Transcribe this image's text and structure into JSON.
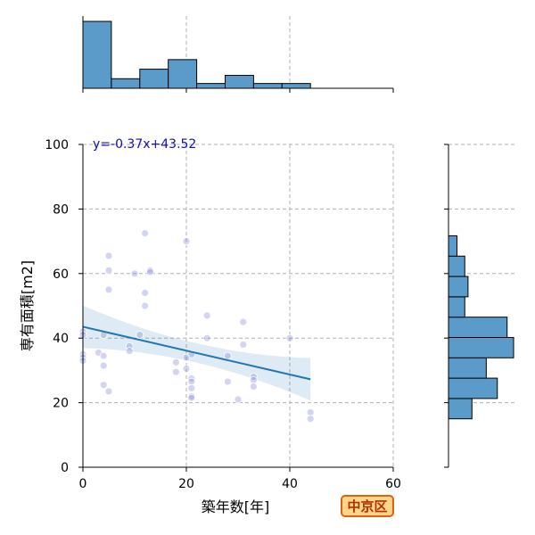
{
  "chart_data": {
    "type": "scatter",
    "title": "",
    "xlabel": "築年数[年]",
    "ylabel": "専有面積[m2]",
    "xlim": [
      0,
      60
    ],
    "ylim": [
      0,
      100
    ],
    "x_ticks": [
      "0",
      "20",
      "40",
      "60"
    ],
    "y_ticks": [
      "0",
      "20",
      "40",
      "60",
      "80",
      "100"
    ],
    "grid": true,
    "regression": {
      "equation": "y=-0.37x+43.52",
      "slope": -0.37,
      "intercept": 43.52,
      "x_range": [
        0,
        44
      ]
    },
    "points": [
      {
        "x": 0,
        "y": 42
      },
      {
        "x": 0,
        "y": 41
      },
      {
        "x": 0,
        "y": 35
      },
      {
        "x": 0,
        "y": 34
      },
      {
        "x": 0,
        "y": 33
      },
      {
        "x": 3,
        "y": 35.5
      },
      {
        "x": 4,
        "y": 41
      },
      {
        "x": 4,
        "y": 34.5
      },
      {
        "x": 4,
        "y": 31.5
      },
      {
        "x": 4,
        "y": 25.5
      },
      {
        "x": 5,
        "y": 65.5
      },
      {
        "x": 5,
        "y": 61
      },
      {
        "x": 5,
        "y": 55
      },
      {
        "x": 5,
        "y": 23.5
      },
      {
        "x": 9,
        "y": 37.5
      },
      {
        "x": 9,
        "y": 36
      },
      {
        "x": 10,
        "y": 60
      },
      {
        "x": 11,
        "y": 41
      },
      {
        "x": 12,
        "y": 72.5
      },
      {
        "x": 12,
        "y": 54
      },
      {
        "x": 12,
        "y": 50
      },
      {
        "x": 13,
        "y": 61
      },
      {
        "x": 13,
        "y": 60.5
      },
      {
        "x": 18,
        "y": 32.5
      },
      {
        "x": 18,
        "y": 29.5
      },
      {
        "x": 20,
        "y": 70
      },
      {
        "x": 20,
        "y": 34
      },
      {
        "x": 20,
        "y": 30.5
      },
      {
        "x": 21,
        "y": 35
      },
      {
        "x": 21,
        "y": 27.5
      },
      {
        "x": 21,
        "y": 26.5
      },
      {
        "x": 21,
        "y": 24.5
      },
      {
        "x": 21,
        "y": 22
      },
      {
        "x": 21,
        "y": 21.5
      },
      {
        "x": 24,
        "y": 47
      },
      {
        "x": 24,
        "y": 40
      },
      {
        "x": 28,
        "y": 34.5
      },
      {
        "x": 28,
        "y": 26.5
      },
      {
        "x": 30,
        "y": 21
      },
      {
        "x": 31,
        "y": 45
      },
      {
        "x": 31,
        "y": 38
      },
      {
        "x": 33,
        "y": 28
      },
      {
        "x": 33,
        "y": 27
      },
      {
        "x": 33,
        "y": 25
      },
      {
        "x": 40,
        "y": 40
      },
      {
        "x": 44,
        "y": 17
      },
      {
        "x": 44,
        "y": 15
      }
    ],
    "top_histogram": {
      "bin_edges": [
        0,
        5.5,
        11,
        16.5,
        22,
        27.5,
        33,
        38.5,
        44
      ],
      "counts": [
        14,
        2,
        4,
        6,
        1,
        2.7,
        1,
        1
      ]
    },
    "right_histogram": {
      "bin_edges": [
        15,
        21.3,
        27.6,
        33.9,
        40.2,
        46.5,
        52.8,
        59.1,
        65.4,
        71.7
      ],
      "counts": [
        3.6,
        7.5,
        5.8,
        10,
        9,
        2.5,
        3,
        2.5,
        1.3
      ]
    },
    "colors": {
      "histogram_fill": "#5b9bc9",
      "regression_line": "#1f77b4",
      "ci_band": "#1f77b4",
      "points_fill": "#7e86d8",
      "grid": "#b0b0b0"
    }
  },
  "badge": {
    "label": "中京区"
  }
}
